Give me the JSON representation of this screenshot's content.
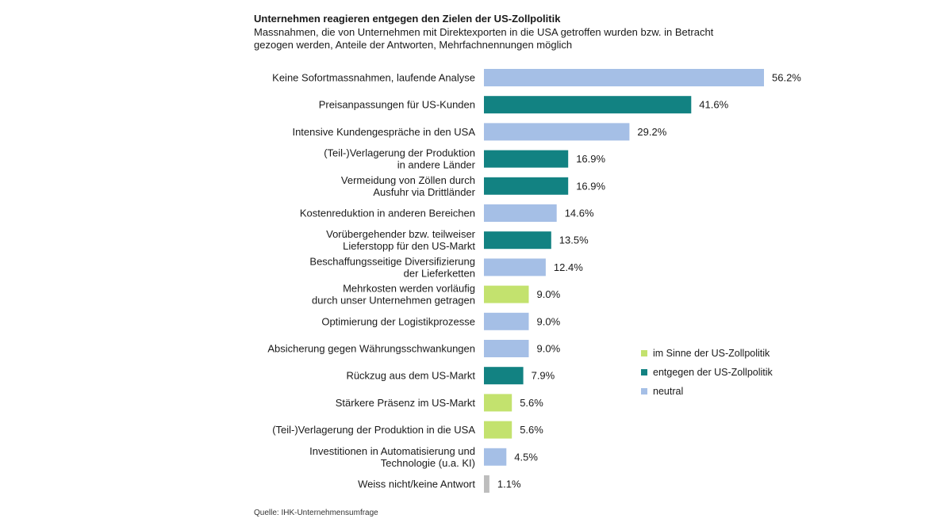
{
  "title": "Unternehmen reagieren entgegen den Zielen der US-Zollpolitik",
  "subtitle": "Massnahmen, die von Unternehmen mit Direktexporten in die USA getroffen wurden bzw. in Betracht gezogen werden, Anteile der Antworten, Mehrfachnennungen möglich",
  "source": "Quelle: IHK-Unternehmensumfrage",
  "colors": {
    "im_sinne": "#c3e26e",
    "entgegen": "#128282",
    "neutral": "#a5bfe6",
    "unbekannt": "#bdbdbd"
  },
  "legend": [
    {
      "key": "im_sinne",
      "label": "im Sinne der US-Zollpolitik"
    },
    {
      "key": "entgegen",
      "label": "entgegen der US-Zollpolitik"
    },
    {
      "key": "neutral",
      "label": "neutral"
    }
  ],
  "chart_data": {
    "type": "bar",
    "orientation": "horizontal",
    "title": "Unternehmen reagieren entgegen den Zielen der US-Zollpolitik",
    "xlim": [
      0,
      60
    ],
    "grid": false,
    "legend_position": "right",
    "value_suffix": "%",
    "categories": [
      [
        "Keine Sofortmassnahmen, laufende Analyse"
      ],
      [
        "Preisanpassungen für US-Kunden"
      ],
      [
        "Intensive Kundengespräche in den USA"
      ],
      [
        "(Teil-)Verlagerung der Produktion",
        "in andere Länder"
      ],
      [
        "Vermeidung von Zöllen durch",
        "Ausfuhr via Drittländer"
      ],
      [
        "Kostenreduktion in anderen Bereichen"
      ],
      [
        "Vorübergehender bzw. teilweiser",
        "Lieferstopp für den US-Markt"
      ],
      [
        "Beschaffungsseitige Diversifizierung",
        "der Lieferketten"
      ],
      [
        "Mehrkosten werden vorläufig",
        "durch unser Unternehmen getragen"
      ],
      [
        "Optimierung der Logistikprozesse"
      ],
      [
        "Absicherung gegen Währungsschwankungen"
      ],
      [
        "Rückzug aus dem US-Markt"
      ],
      [
        "Stärkere Präsenz im US-Markt"
      ],
      [
        "(Teil-)Verlagerung der Produktion in die USA"
      ],
      [
        "Investitionen in Automatisierung und",
        "Technologie (u.a. KI)"
      ],
      [
        "Weiss nicht/keine Antwort"
      ]
    ],
    "values": [
      56.2,
      41.6,
      29.2,
      16.9,
      16.9,
      14.6,
      13.5,
      12.4,
      9.0,
      9.0,
      9.0,
      7.9,
      5.6,
      5.6,
      4.5,
      1.1
    ],
    "value_labels": [
      "56.2%",
      "41.6%",
      "29.2%",
      "16.9%",
      "16.9%",
      "14.6%",
      "13.5%",
      "12.4%",
      "9.0%",
      "9.0%",
      "9.0%",
      "7.9%",
      "5.6%",
      "5.6%",
      "4.5%",
      "1.1%"
    ],
    "groups": [
      "neutral",
      "entgegen",
      "neutral",
      "entgegen",
      "entgegen",
      "neutral",
      "entgegen",
      "neutral",
      "im_sinne",
      "neutral",
      "neutral",
      "entgegen",
      "im_sinne",
      "im_sinne",
      "neutral",
      "unbekannt"
    ]
  }
}
